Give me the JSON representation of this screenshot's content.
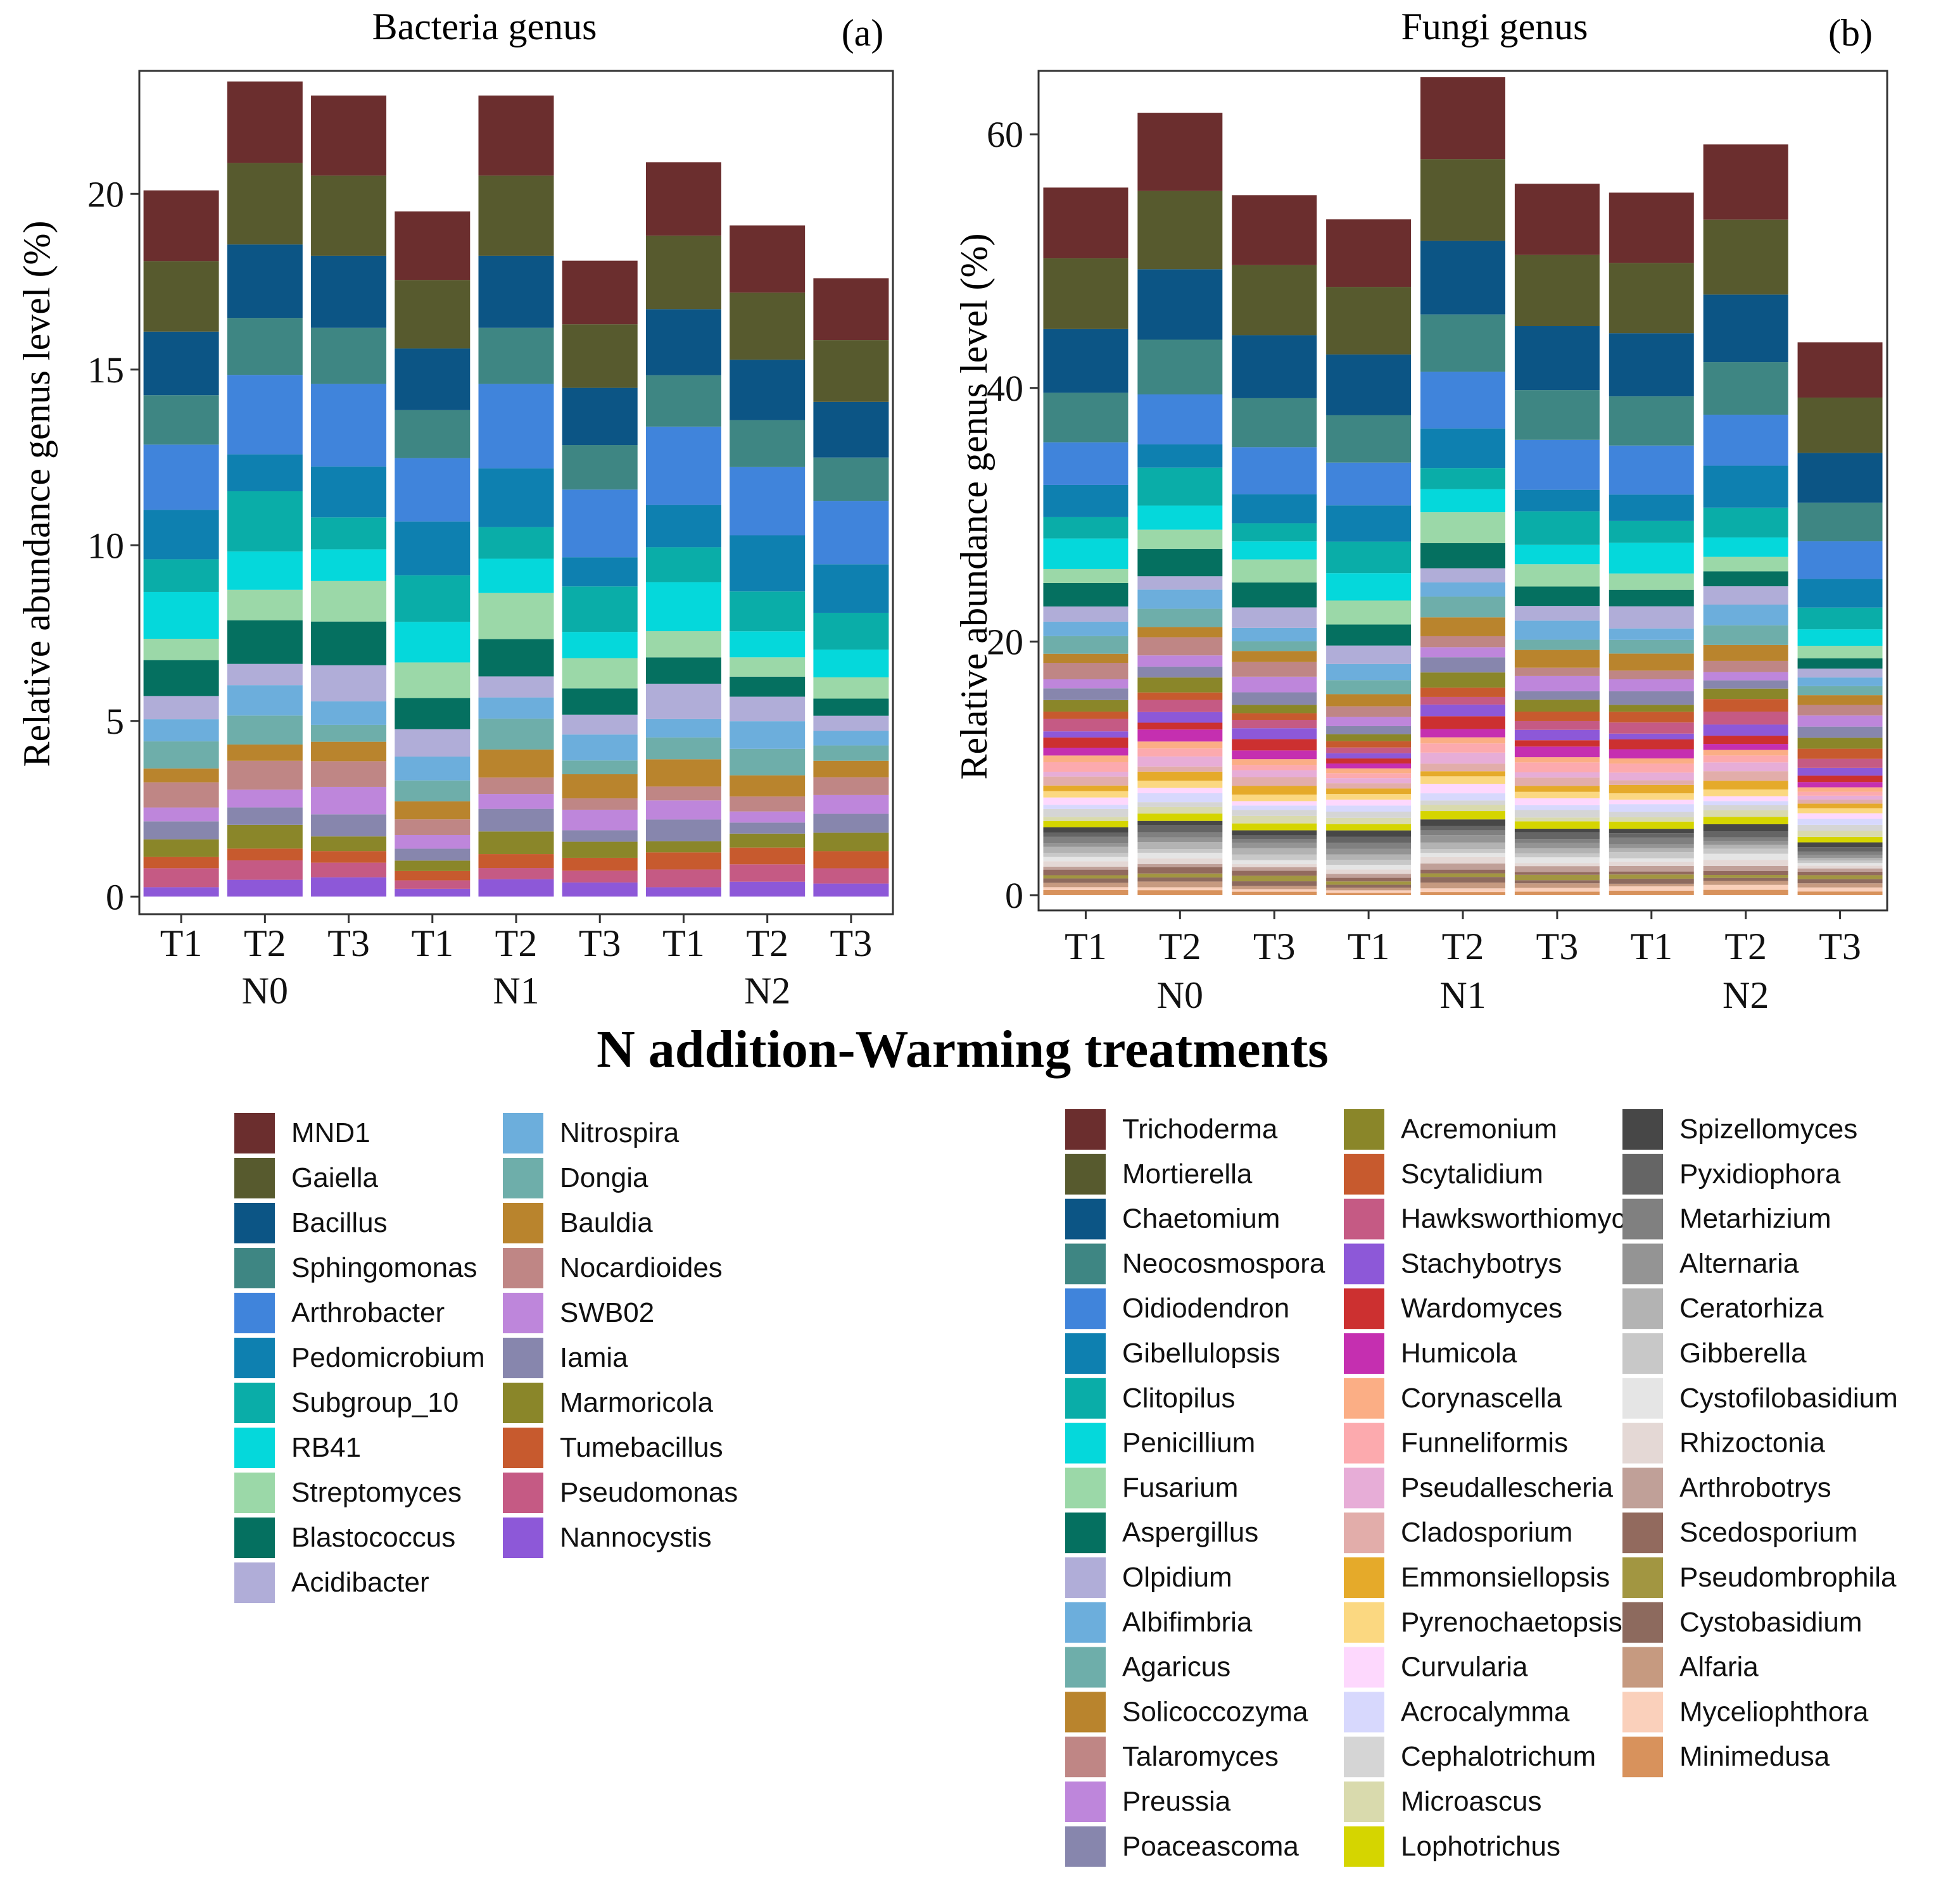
{
  "figure": {
    "xlabel": "N addition-Warming treatments",
    "levels": [
      "N0",
      "N1",
      "N2"
    ],
    "treatments": [
      "T1",
      "T2",
      "T3"
    ]
  },
  "chart_data": [
    {
      "type": "bar",
      "stacked": true,
      "title": "Bacteria genus",
      "panel": "(a)",
      "ylabel": "Relative abundance genus level (%)",
      "ylim": [
        -0.5,
        23.5
      ],
      "yticks": [
        0,
        5,
        10,
        15,
        20
      ],
      "categories": [
        "T1",
        "T2",
        "T3",
        "T1",
        "T2",
        "T3",
        "T1",
        "T2",
        "T3"
      ],
      "groups": [
        "N0",
        "N1",
        "N2"
      ],
      "totals": [
        20.1,
        23.2,
        22.8,
        19.5,
        22.8,
        18.1,
        20.9,
        19.1,
        17.6
      ],
      "series": [
        {
          "name": "MND1",
          "color": "#6B2E2E"
        },
        {
          "name": "Gaiella",
          "color": "#575A2E"
        },
        {
          "name": "Bacillus",
          "color": "#0C5585"
        },
        {
          "name": "Sphingomonas",
          "color": "#3E8683"
        },
        {
          "name": "Arthrobacter",
          "color": "#4084DB"
        },
        {
          "name": "Pedomicrobium",
          "color": "#0E80B0"
        },
        {
          "name": "Subgroup_10",
          "color": "#0AADA8"
        },
        {
          "name": "RB41",
          "color": "#05D8DB"
        },
        {
          "name": "Streptomyces",
          "color": "#9BD8A8"
        },
        {
          "name": "Blastococcus",
          "color": "#057060"
        },
        {
          "name": "Acidibacter",
          "color": "#B0ADD8"
        },
        {
          "name": "Nitrospira",
          "color": "#6CAEDC"
        },
        {
          "name": "Dongia",
          "color": "#6EAEAA"
        },
        {
          "name": "Bauldia",
          "color": "#B9842D"
        },
        {
          "name": "Nocardioides",
          "color": "#BF8685"
        },
        {
          "name": "SWB02",
          "color": "#BE86DB"
        },
        {
          "name": "Iamia",
          "color": "#8786AD"
        },
        {
          "name": "Marmoricola",
          "color": "#8A8629"
        },
        {
          "name": "Tumebacillus",
          "color": "#C75A2E"
        },
        {
          "name": "Pseudomonas",
          "color": "#C55A84"
        },
        {
          "name": "Nannocystis",
          "color": "#8D58D8"
        }
      ]
    },
    {
      "type": "bar",
      "stacked": true,
      "title": "Fungi genus",
      "panel": "(b)",
      "ylabel": "Relative abundance genus level (%)",
      "ylim": [
        -1.2,
        65
      ],
      "yticks": [
        0,
        20,
        40,
        60
      ],
      "categories": [
        "T1",
        "T2",
        "T3",
        "T1",
        "T2",
        "T3",
        "T1",
        "T2",
        "T3"
      ],
      "groups": [
        "N0",
        "N1",
        "N2"
      ],
      "totals": [
        55.8,
        61.7,
        55.2,
        53.3,
        64.5,
        56.1,
        55.4,
        59.2,
        43.6
      ],
      "series": [
        {
          "name": "Trichoderma",
          "color": "#6B2E2E"
        },
        {
          "name": "Mortierella",
          "color": "#575A2E"
        },
        {
          "name": "Chaetomium",
          "color": "#0C5585"
        },
        {
          "name": "Neocosmospora",
          "color": "#3E8683"
        },
        {
          "name": "Oidiodendron",
          "color": "#4084DB"
        },
        {
          "name": "Gibellulopsis",
          "color": "#0E80B0"
        },
        {
          "name": "Clitopilus",
          "color": "#0AADA8"
        },
        {
          "name": "Penicillium",
          "color": "#05D8DB"
        },
        {
          "name": "Fusarium",
          "color": "#9BD8A8"
        },
        {
          "name": "Aspergillus",
          "color": "#057060"
        },
        {
          "name": "Olpidium",
          "color": "#B0ADD8"
        },
        {
          "name": "Albifimbria",
          "color": "#6CAEDC"
        },
        {
          "name": "Agaricus",
          "color": "#6EAEAA"
        },
        {
          "name": "Solicoccozyma",
          "color": "#B9842D"
        },
        {
          "name": "Talaromyces",
          "color": "#BF8685"
        },
        {
          "name": "Preussia",
          "color": "#BE86DB"
        },
        {
          "name": "Poaceascoma",
          "color": "#8786AD"
        },
        {
          "name": "Acremonium",
          "color": "#8A8629"
        },
        {
          "name": "Scytalidium",
          "color": "#C75A2E"
        },
        {
          "name": "Hawksworthiomyces",
          "color": "#C55A84"
        },
        {
          "name": "Stachybotrys",
          "color": "#8D58D8"
        },
        {
          "name": "Wardomyces",
          "color": "#CC3030"
        },
        {
          "name": "Humicola",
          "color": "#C52FB0"
        },
        {
          "name": "Corynascella",
          "color": "#FBAE85"
        },
        {
          "name": "Funneliformis",
          "color": "#FCAAAE"
        },
        {
          "name": "Pseudallescheria",
          "color": "#E7ADD7"
        },
        {
          "name": "Cladosporium",
          "color": "#E2ADAA"
        },
        {
          "name": "Emmonsiellopsis",
          "color": "#E5AA2A"
        },
        {
          "name": "Pyrenochaetopsis",
          "color": "#FBD881"
        },
        {
          "name": "Curvularia",
          "color": "#FDD8FD"
        },
        {
          "name": "Acrocalymma",
          "color": "#D7D8FD"
        },
        {
          "name": "Cephalotrichum",
          "color": "#D5D5D5"
        },
        {
          "name": "Microascus",
          "color": "#D9DAAD"
        },
        {
          "name": "Lophotrichus",
          "color": "#D5D500"
        },
        {
          "name": "Spizellomyces",
          "color": "#474747"
        },
        {
          "name": "Pyxidiophora",
          "color": "#656565"
        },
        {
          "name": "Metarhizium",
          "color": "#808080"
        },
        {
          "name": "Alternaria",
          "color": "#949494"
        },
        {
          "name": "Ceratorhiza",
          "color": "#B3B3B3"
        },
        {
          "name": "Gibberella",
          "color": "#C8C8C8"
        },
        {
          "name": "Cystofilobasidium",
          "color": "#E5E5E5"
        },
        {
          "name": "Rhizoctonia",
          "color": "#E4D8D5"
        },
        {
          "name": "Arthrobotrys",
          "color": "#C0A098"
        },
        {
          "name": "Scedosporium",
          "color": "#926A5E"
        },
        {
          "name": "Pseudombrophila",
          "color": "#A29641"
        },
        {
          "name": "Cystobasidium",
          "color": "#8D6A5E"
        },
        {
          "name": "Alfaria",
          "color": "#C69A80"
        },
        {
          "name": "Myceliophthora",
          "color": "#FAD0BB"
        },
        {
          "name": "Minimedusa",
          "color": "#D8925C"
        }
      ]
    }
  ]
}
